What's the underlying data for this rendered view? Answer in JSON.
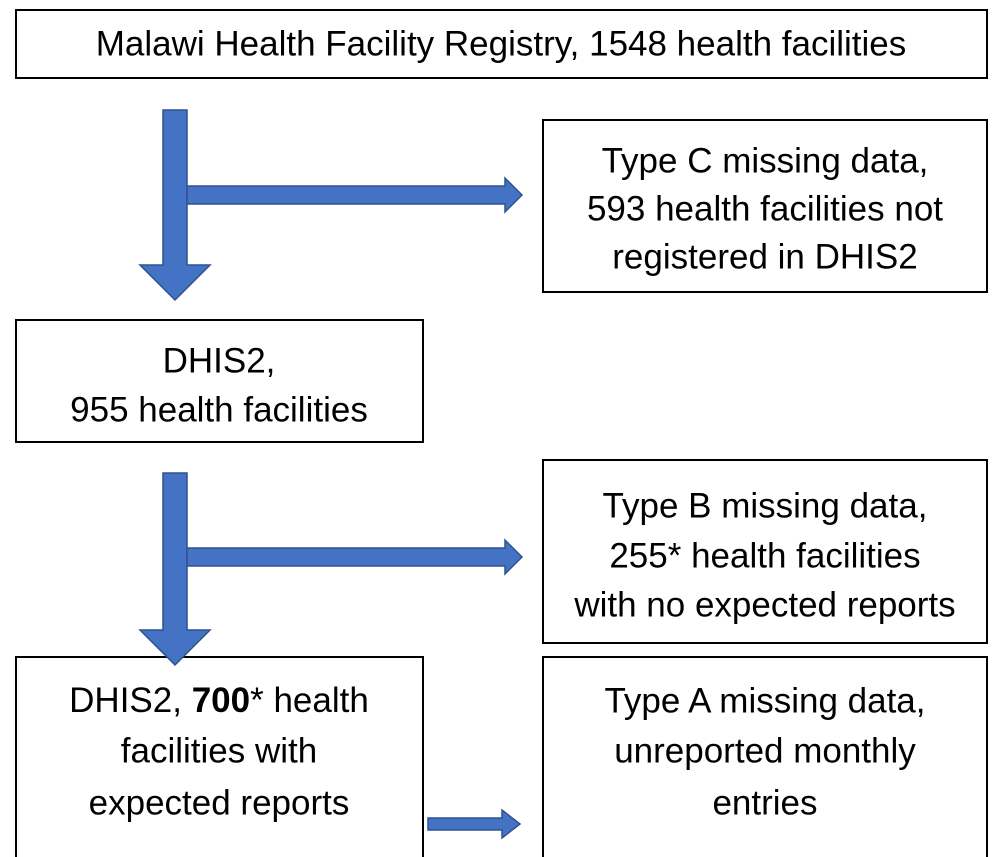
{
  "nodes": [
    {
      "lines": [
        "Malawi Health Facility Registry, 1548 health facilities"
      ]
    },
    {
      "lines": [
        "Type C missing data,",
        "593 health facilities not",
        "registered in DHIS2"
      ]
    },
    {
      "lines": [
        "DHIS2,",
        "955 health facilities"
      ]
    },
    {
      "lines": [
        "Type B missing data,",
        "255* health facilities",
        "with no expected reports"
      ]
    },
    {
      "lines": [
        [
          "DHIS2, ",
          "700",
          "* health"
        ],
        "facilities with",
        "expected reports"
      ]
    },
    {
      "lines": [
        "Type A missing data,",
        "unreported monthly",
        "entries"
      ]
    }
  ]
}
